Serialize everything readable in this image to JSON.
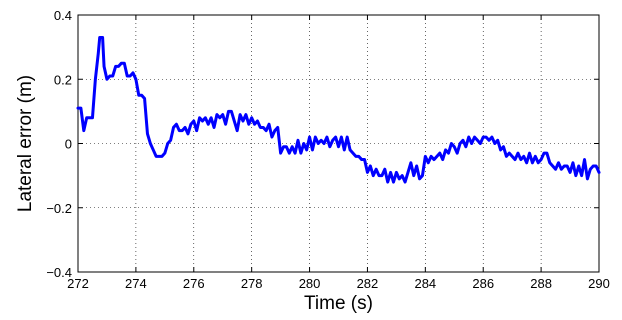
{
  "chart_data": {
    "type": "line",
    "title": "",
    "xlabel": "Time (s)",
    "ylabel": "Lateral error (m)",
    "xlim": [
      272,
      290
    ],
    "ylim": [
      -0.4,
      0.4
    ],
    "grid": true,
    "x_ticks": [
      272,
      274,
      276,
      278,
      280,
      282,
      284,
      286,
      288,
      290
    ],
    "x_tick_labels": [
      "272",
      "274",
      "276",
      "278",
      "280",
      "282",
      "284",
      "286",
      "288",
      "290"
    ],
    "y_ticks": [
      -0.4,
      -0.2,
      0,
      0.2,
      0.4
    ],
    "y_tick_labels": [
      "−0.4",
      "−0.2",
      "0",
      "0.2",
      "0.4"
    ],
    "series": [
      {
        "color": "#0000ff",
        "x": [
          272.0,
          272.1,
          272.2,
          272.3,
          272.4,
          272.5,
          272.6,
          272.7,
          272.75,
          272.85,
          272.9,
          273.0,
          273.1,
          273.2,
          273.3,
          273.4,
          273.5,
          273.6,
          273.7,
          273.8,
          273.9,
          274.0,
          274.1,
          274.2,
          274.3,
          274.4,
          274.5,
          274.6,
          274.7,
          274.8,
          274.9,
          275.0,
          275.1,
          275.2,
          275.3,
          275.4,
          275.5,
          275.6,
          275.7,
          275.8,
          275.9,
          276.0,
          276.1,
          276.2,
          276.3,
          276.4,
          276.5,
          276.6,
          276.7,
          276.8,
          276.9,
          277.0,
          277.1,
          277.2,
          277.3,
          277.4,
          277.5,
          277.6,
          277.7,
          277.8,
          277.9,
          278.0,
          278.1,
          278.2,
          278.3,
          278.4,
          278.5,
          278.6,
          278.7,
          278.8,
          278.9,
          279.0,
          279.1,
          279.2,
          279.3,
          279.4,
          279.5,
          279.6,
          279.7,
          279.8,
          279.9,
          280.0,
          280.1,
          280.2,
          280.3,
          280.4,
          280.5,
          280.6,
          280.7,
          280.8,
          280.9,
          281.0,
          281.1,
          281.2,
          281.3,
          281.4,
          281.5,
          281.6,
          281.7,
          281.8,
          281.9,
          282.0,
          282.1,
          282.2,
          282.3,
          282.4,
          282.5,
          282.6,
          282.7,
          282.8,
          282.9,
          283.0,
          283.1,
          283.2,
          283.3,
          283.4,
          283.5,
          283.6,
          283.7,
          283.8,
          283.9,
          284.0,
          284.1,
          284.2,
          284.3,
          284.4,
          284.5,
          284.6,
          284.7,
          284.8,
          284.9,
          285.0,
          285.1,
          285.2,
          285.3,
          285.4,
          285.5,
          285.6,
          285.7,
          285.8,
          285.9,
          286.0,
          286.1,
          286.2,
          286.3,
          286.4,
          286.5,
          286.6,
          286.7,
          286.8,
          286.9,
          287.0,
          287.1,
          287.2,
          287.3,
          287.4,
          287.5,
          287.6,
          287.7,
          287.8,
          287.9,
          288.0,
          288.1,
          288.2,
          288.3,
          288.4,
          288.5,
          288.6,
          288.7,
          288.8,
          288.9,
          289.0,
          289.1,
          289.2,
          289.3,
          289.4,
          289.5,
          289.6,
          289.7,
          289.8,
          289.9,
          290.0
        ],
        "y": [
          0.11,
          0.11,
          0.04,
          0.08,
          0.08,
          0.08,
          0.2,
          0.28,
          0.33,
          0.33,
          0.24,
          0.2,
          0.21,
          0.21,
          0.24,
          0.24,
          0.25,
          0.25,
          0.21,
          0.21,
          0.22,
          0.2,
          0.15,
          0.15,
          0.14,
          0.03,
          0.0,
          -0.02,
          -0.04,
          -0.04,
          -0.04,
          -0.03,
          0.0,
          0.01,
          0.05,
          0.06,
          0.04,
          0.04,
          0.05,
          0.03,
          0.06,
          0.07,
          0.04,
          0.08,
          0.07,
          0.08,
          0.06,
          0.08,
          0.05,
          0.09,
          0.08,
          0.09,
          0.06,
          0.1,
          0.1,
          0.07,
          0.04,
          0.09,
          0.07,
          0.09,
          0.06,
          0.08,
          0.06,
          0.07,
          0.05,
          0.05,
          0.04,
          0.06,
          0.02,
          0.04,
          0.05,
          -0.03,
          -0.01,
          -0.01,
          -0.03,
          -0.01,
          -0.03,
          0.01,
          -0.03,
          0.0,
          -0.02,
          0.02,
          -0.02,
          0.02,
          0.0,
          0.01,
          0.0,
          0.02,
          -0.01,
          0.01,
          0.02,
          -0.01,
          0.02,
          -0.02,
          0.02,
          -0.02,
          -0.03,
          -0.04,
          -0.04,
          -0.05,
          -0.05,
          -0.09,
          -0.07,
          -0.1,
          -0.08,
          -0.1,
          -0.1,
          -0.08,
          -0.12,
          -0.09,
          -0.12,
          -0.09,
          -0.11,
          -0.1,
          -0.12,
          -0.09,
          -0.06,
          -0.1,
          -0.07,
          -0.11,
          -0.1,
          -0.04,
          -0.06,
          -0.04,
          -0.05,
          -0.04,
          -0.03,
          -0.05,
          -0.02,
          -0.03,
          0.0,
          -0.01,
          -0.03,
          0.0,
          0.01,
          -0.01,
          0.02,
          0.0,
          0.02,
          0.01,
          0.0,
          0.02,
          0.02,
          0.01,
          0.02,
          0.0,
          0.01,
          -0.02,
          -0.01,
          -0.04,
          -0.03,
          -0.04,
          -0.05,
          -0.03,
          -0.05,
          -0.04,
          -0.06,
          -0.03,
          -0.06,
          -0.04,
          -0.06,
          -0.05,
          -0.03,
          -0.03,
          -0.06,
          -0.07,
          -0.08,
          -0.06,
          -0.08,
          -0.07,
          -0.07,
          -0.09,
          -0.06,
          -0.1,
          -0.07,
          -0.1,
          -0.05,
          -0.11,
          -0.08,
          -0.07,
          -0.07,
          -0.09
        ]
      }
    ]
  }
}
